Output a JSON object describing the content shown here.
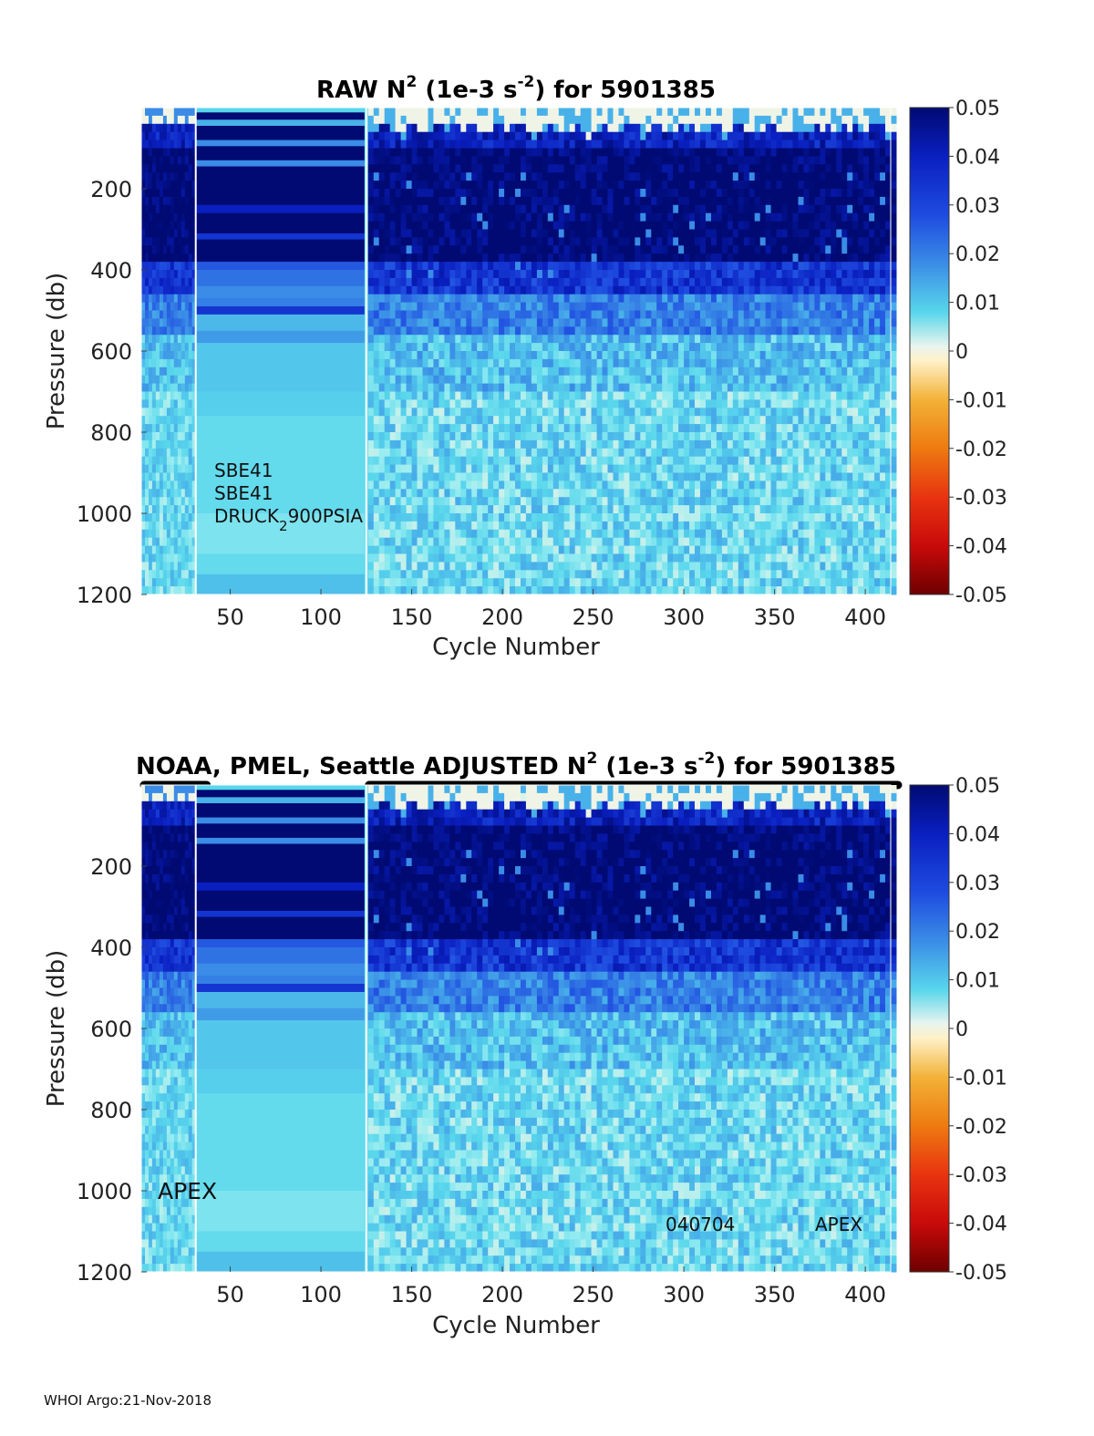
{
  "footer": "WHOI Argo:21-Nov-2018",
  "colorbar": {
    "ticks": [
      "0.05",
      "0.04",
      "0.03",
      "0.02",
      "0.01",
      "0",
      "-0.01",
      "-0.02",
      "-0.03",
      "-0.04",
      "-0.05"
    ],
    "range": [
      -0.05,
      0.05
    ],
    "colormap": "jet-like diverging (dark red - orange - pale yellow - cyan - blue - navy)"
  },
  "chart_data": [
    {
      "type": "heatmap",
      "title_prefix": "RAW N",
      "title_sup": "2",
      "title_mid": " (1e-3 s",
      "title_sup2": "-2",
      "title_suffix": ") for 5901385",
      "xlabel": "Cycle Number",
      "ylabel": "Pressure (db)",
      "x_ticks": [
        "50",
        "100",
        "150",
        "200",
        "250",
        "300",
        "350",
        "400"
      ],
      "x_tick_values": [
        50,
        100,
        150,
        200,
        250,
        300,
        350,
        400
      ],
      "y_ticks": [
        "200",
        "400",
        "600",
        "800",
        "1000",
        "1200"
      ],
      "y_tick_values": [
        200,
        400,
        600,
        800,
        1000,
        1200
      ],
      "xlim": [
        1,
        414
      ],
      "ylim": [
        1200,
        0
      ],
      "annotations": [
        {
          "text": "SBE41",
          "x": 40,
          "y": 880
        },
        {
          "text": "SBE41",
          "x": 40,
          "y": 935
        },
        {
          "text": "DRUCK",
          "sub": "2",
          "tail": "900PSIA",
          "x": 40,
          "y": 990
        }
      ],
      "profile_depth_bands": [
        {
          "p_top": 0,
          "p_bottom": 100,
          "value": 0.045
        },
        {
          "p_top": 100,
          "p_bottom": 400,
          "value": 0.05
        },
        {
          "p_top": 400,
          "p_bottom": 520,
          "value": 0.025
        },
        {
          "p_top": 520,
          "p_bottom": 700,
          "value": 0.012
        },
        {
          "p_top": 700,
          "p_bottom": 1200,
          "value": 0.008
        }
      ]
    },
    {
      "type": "heatmap",
      "title_prefix": "NOAA, PMEL, Seattle  ADJUSTED N",
      "title_sup": "2",
      "title_mid": " (1e-3 s",
      "title_sup2": "-2",
      "title_suffix": ") for 5901385",
      "xlabel": "Cycle Number",
      "ylabel": "Pressure (db)",
      "x_ticks": [
        "50",
        "100",
        "150",
        "200",
        "250",
        "300",
        "350",
        "400"
      ],
      "x_tick_values": [
        50,
        100,
        150,
        200,
        250,
        300,
        350,
        400
      ],
      "y_ticks": [
        "200",
        "400",
        "600",
        "800",
        "1000",
        "1200"
      ],
      "y_tick_values": [
        200,
        400,
        600,
        800,
        1000,
        1200
      ],
      "xlim": [
        1,
        414
      ],
      "ylim": [
        1200,
        0
      ],
      "annotations": [
        {
          "text": "APEX",
          "x": 9,
          "y": 1000,
          "big": true
        },
        {
          "text": "040704",
          "x": 290,
          "y": 1080
        },
        {
          "text": "APEX",
          "x": 372,
          "y": 1080
        }
      ],
      "qc_bar_segments": [
        [
          1,
          33
        ],
        [
          125,
          414
        ]
      ]
    }
  ]
}
